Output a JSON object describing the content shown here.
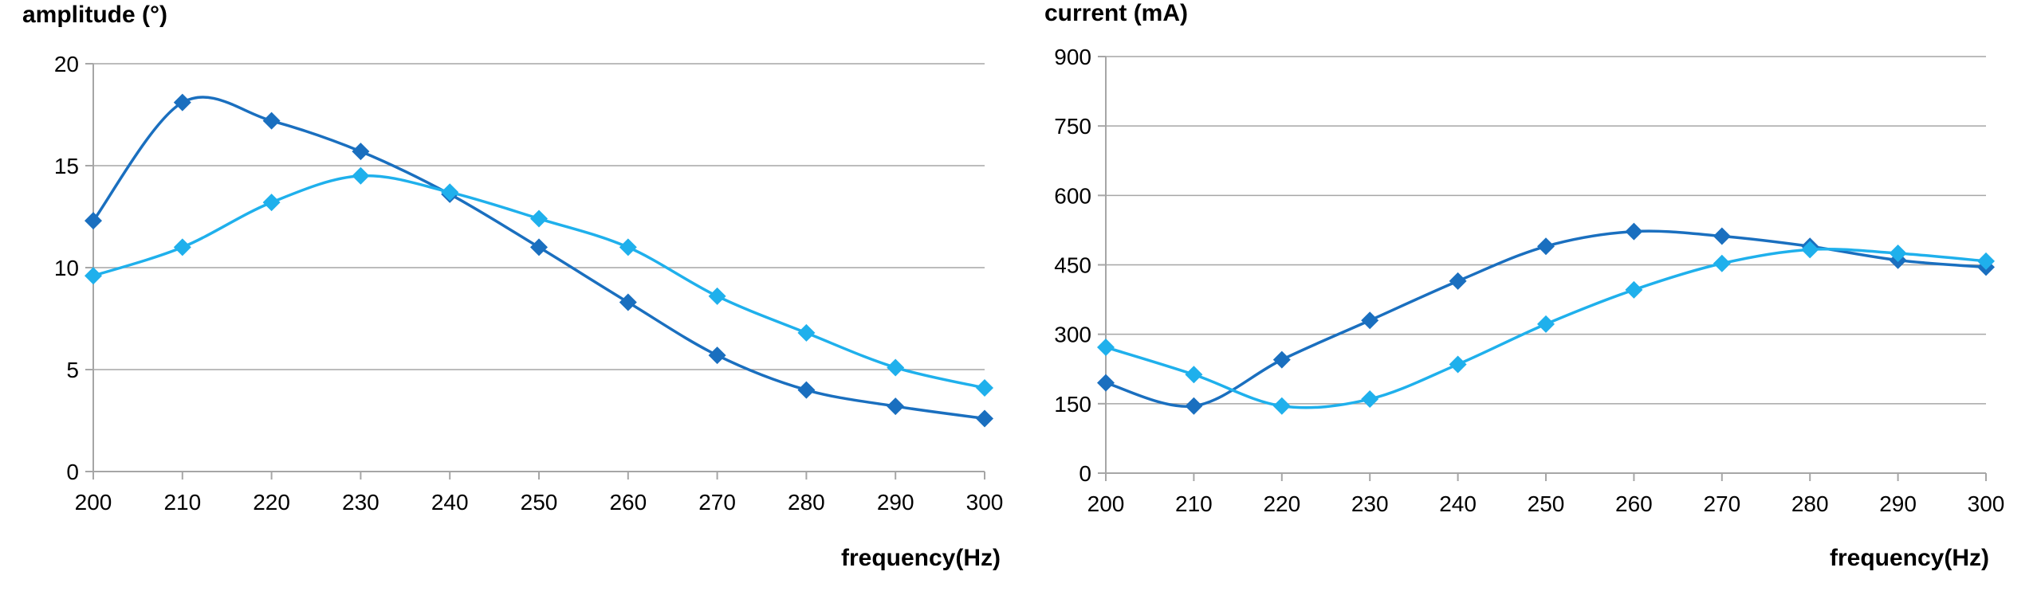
{
  "charts": [
    {
      "type": "line",
      "title": "",
      "ylabel": "amplitude (°)",
      "xlabel": "frequency(Hz)",
      "x": [
        200,
        210,
        220,
        230,
        240,
        250,
        260,
        270,
        280,
        290,
        300
      ],
      "xticks": [
        "200",
        "210",
        "220",
        "230",
        "240",
        "250",
        "260",
        "270",
        "280",
        "290",
        "300"
      ],
      "ylim": [
        0,
        20
      ],
      "yticks": [
        "0",
        "5",
        "10",
        "15",
        "20"
      ],
      "ytick_values": [
        0,
        5,
        10,
        15,
        20
      ],
      "grid": true,
      "series": [
        {
          "color": "#1a6fbf",
          "values": [
            12.3,
            18.1,
            17.2,
            15.7,
            13.6,
            11.0,
            8.3,
            5.7,
            4.0,
            3.2,
            2.6
          ]
        },
        {
          "color": "#1fb0ec",
          "values": [
            9.6,
            11.0,
            13.2,
            14.5,
            13.7,
            12.4,
            11.0,
            8.6,
            6.8,
            5.1,
            4.1
          ]
        }
      ]
    },
    {
      "type": "line",
      "title": "",
      "ylabel": "current (mA)",
      "xlabel": "frequency(Hz)",
      "x": [
        200,
        210,
        220,
        230,
        240,
        250,
        260,
        270,
        280,
        290,
        300
      ],
      "xticks": [
        "200",
        "210",
        "220",
        "230",
        "240",
        "250",
        "260",
        "270",
        "280",
        "290",
        "300"
      ],
      "ylim": [
        0,
        900
      ],
      "yticks": [
        "0",
        "150",
        "300",
        "450",
        "600",
        "750",
        "900"
      ],
      "ytick_values": [
        0,
        150,
        300,
        450,
        600,
        750,
        900
      ],
      "grid": true,
      "series": [
        {
          "color": "#1a6fbf",
          "values": [
            195,
            145,
            245,
            330,
            415,
            490,
            522,
            512,
            490,
            460,
            445
          ]
        },
        {
          "color": "#1fb0ec",
          "values": [
            272,
            213,
            145,
            160,
            235,
            322,
            396,
            453,
            483,
            475,
            458
          ]
        }
      ]
    }
  ]
}
